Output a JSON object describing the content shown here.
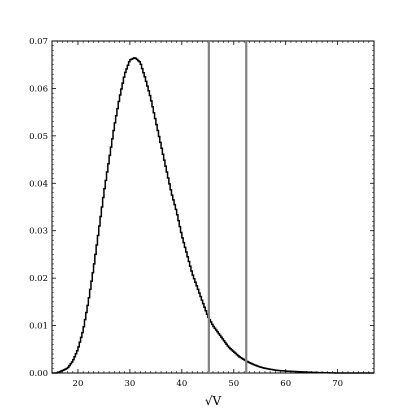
{
  "chart_data": {
    "type": "histogram",
    "title": "",
    "xlabel": "√V",
    "ylabel": "",
    "xlim": [
      15,
      77
    ],
    "ylim": [
      0,
      0.07
    ],
    "x_ticks": [
      20,
      30,
      40,
      50,
      60,
      70
    ],
    "x_tick_labels": [
      "20",
      "30",
      "40",
      "50",
      "60",
      "70"
    ],
    "y_ticks": [
      0,
      0.01,
      0.02,
      0.03,
      0.04,
      0.05,
      0.06,
      0.07
    ],
    "y_tick_labels": [
      "0.00",
      "0.01",
      "0.02",
      "0.03",
      "0.04",
      "0.05",
      "0.06",
      "0.07"
    ],
    "grid": false,
    "step_color": "#000000",
    "marker_color": "#808080",
    "histogram": {
      "x": [
        15,
        16,
        17,
        18,
        19,
        20,
        21,
        22,
        23,
        24,
        25,
        26,
        27,
        28,
        29,
        30,
        31,
        32,
        33,
        34,
        35,
        36,
        37,
        38,
        39,
        40,
        41,
        42,
        43,
        44,
        45,
        46,
        47,
        48,
        49,
        50,
        51,
        52,
        53,
        54,
        55,
        56,
        57,
        58,
        59,
        60,
        62,
        64,
        66,
        68,
        70,
        72,
        74,
        77
      ],
      "y": [
        0,
        0,
        0.0005,
        0.001,
        0.0025,
        0.005,
        0.009,
        0.015,
        0.022,
        0.03,
        0.038,
        0.045,
        0.052,
        0.058,
        0.063,
        0.066,
        0.0665,
        0.0655,
        0.062,
        0.058,
        0.053,
        0.048,
        0.043,
        0.038,
        0.034,
        0.029,
        0.025,
        0.021,
        0.018,
        0.015,
        0.012,
        0.01,
        0.0085,
        0.007,
        0.0055,
        0.0045,
        0.0035,
        0.0028,
        0.0022,
        0.0017,
        0.0013,
        0.001,
        0.0008,
        0.0006,
        0.0005,
        0.0004,
        0.0003,
        0.0002,
        0.0001,
        5e-05,
        0,
        0,
        0,
        0
      ]
    },
    "vertical_lines": [
      45.2,
      52.4
    ]
  }
}
